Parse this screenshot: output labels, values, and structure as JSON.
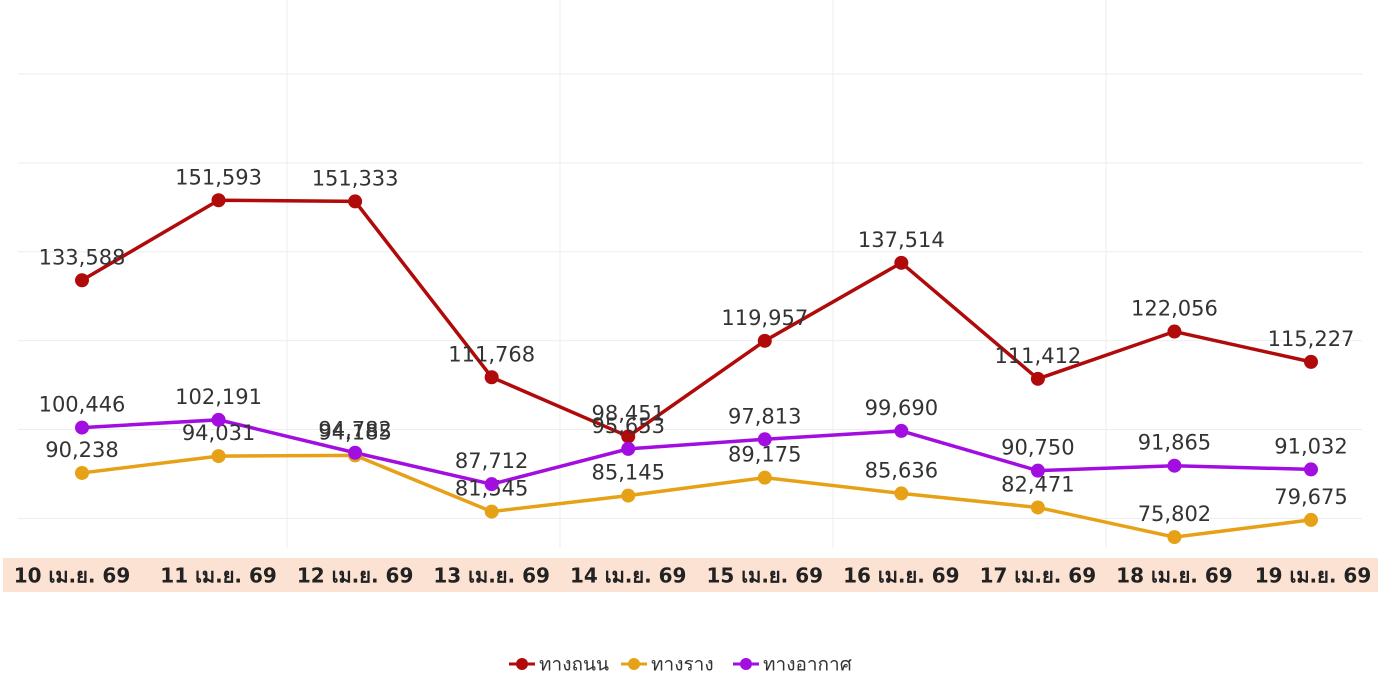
{
  "chart_data": {
    "type": "line",
    "categories": [
      "10 เม.ย. 69",
      "11 เม.ย. 69",
      "12 เม.ย. 69",
      "13 เม.ย. 69",
      "14 เม.ย. 69",
      "15 เม.ย. 69",
      "16 เม.ย. 69",
      "17 เม.ย. 69",
      "18 เม.ย. 69",
      "19 เม.ย. 69"
    ],
    "series": [
      {
        "name": "ทางถนน",
        "color": "#b00a0a",
        "values": [
          133588,
          151593,
          151333,
          111768,
          98451,
          119957,
          137514,
          111412,
          122056,
          115227
        ],
        "value_labels": [
          "133,588",
          "151,593",
          "151,333",
          "111,768",
          "98,451",
          "119,957",
          "137,514",
          "111,412",
          "122,056",
          "115,227"
        ]
      },
      {
        "name": "ทางราง",
        "color": "#e6a117",
        "values": [
          90238,
          94031,
          94185,
          81545,
          85145,
          89175,
          85636,
          82471,
          75802,
          79675
        ],
        "value_labels": [
          "90,238",
          "94,031",
          "94,185",
          "81,545",
          "85,145",
          "89,175",
          "85,636",
          "82,471",
          "75,802",
          "79,675"
        ]
      },
      {
        "name": "ทางอากาศ",
        "color": "#a20ee0",
        "values": [
          100446,
          102191,
          94782,
          87712,
          95653,
          97813,
          99690,
          90750,
          91865,
          91032
        ],
        "value_labels": [
          "100,446",
          "102,191",
          "94,782",
          "87,712",
          "95,653",
          "97,813",
          "99,690",
          "90,750",
          "91,865",
          "91,032"
        ]
      }
    ],
    "ylim": [
      72000,
      180000
    ],
    "yticks": [
      80000,
      100000,
      120000,
      140000,
      160000,
      180000
    ],
    "grid": true,
    "legend": "bottom"
  }
}
